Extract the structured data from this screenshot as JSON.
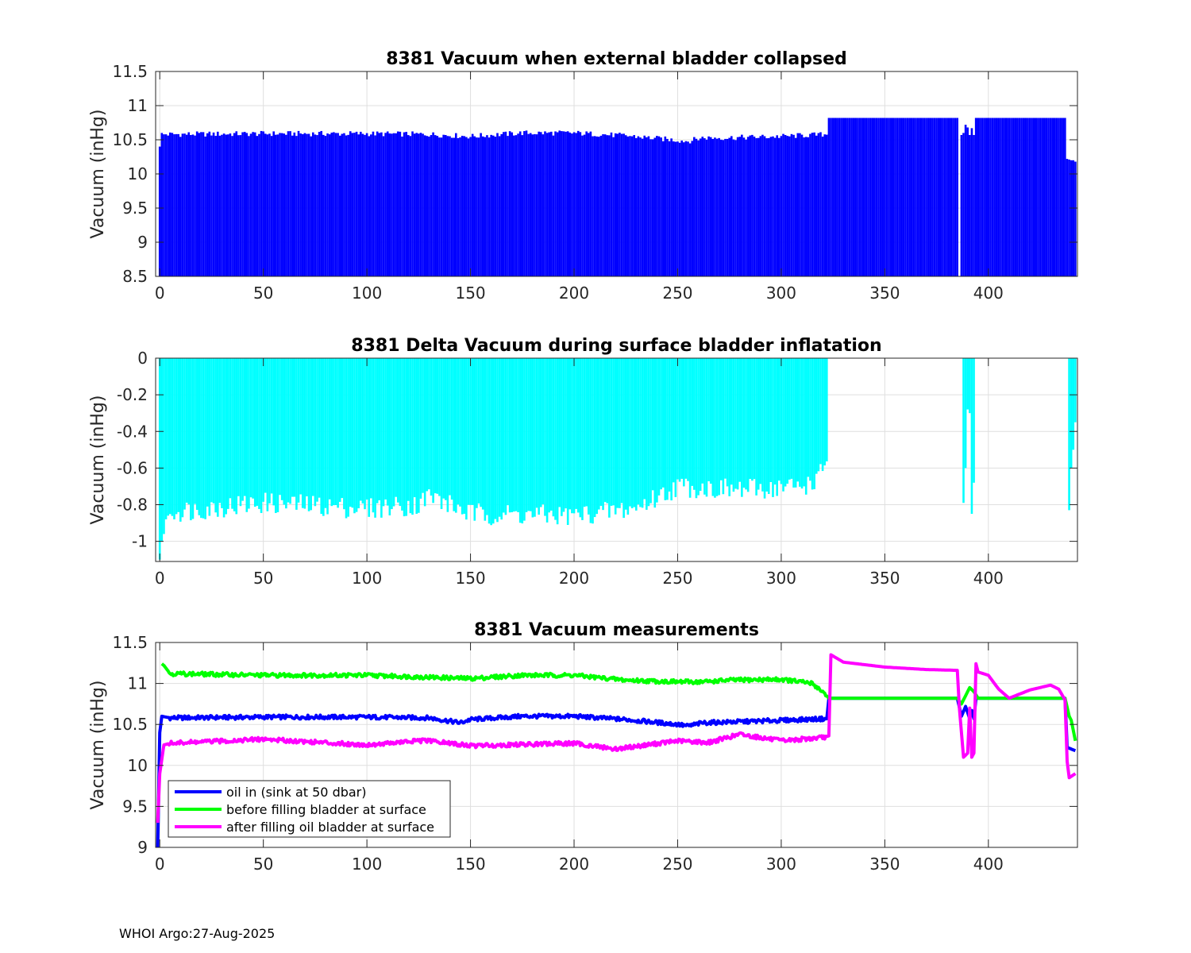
{
  "footer": "WHOI Argo:27-Aug-2025",
  "chart_data": [
    {
      "type": "bar",
      "title": "8381 Vacuum when external bladder collapsed",
      "ylabel": "Vacuum (inHg)",
      "xlim": [
        -2,
        443
      ],
      "ylim": [
        8.5,
        11.5
      ],
      "xticks": [
        0,
        50,
        100,
        150,
        200,
        250,
        300,
        350,
        400
      ],
      "yticks": [
        8.5,
        9,
        9.5,
        10,
        10.5,
        11,
        11.5
      ],
      "ytick_labels": [
        "8.5",
        "9",
        "9.5",
        "10",
        "10.5",
        "11",
        "11.5"
      ],
      "color": "#0000ff",
      "baseline": 8.5,
      "grid": true,
      "segments": [
        {
          "x": [
            0,
            1,
            2,
            3
          ],
          "y": [
            10.4,
            10.6,
            10.58,
            10.58
          ]
        },
        {
          "x": [
            4,
            50,
            100,
            130,
            150,
            175,
            200,
            225,
            255,
            262,
            275,
            300,
            322
          ],
          "y": [
            10.58,
            10.59,
            10.59,
            10.58,
            10.55,
            10.6,
            10.6,
            10.56,
            10.48,
            10.53,
            10.53,
            10.55,
            10.58
          ]
        },
        {
          "x": [
            323,
            385
          ],
          "y": [
            10.82,
            10.82
          ]
        },
        {
          "x": [
            387,
            388,
            389,
            390,
            391,
            392,
            393
          ],
          "y": [
            10.57,
            10.6,
            10.72,
            10.68,
            10.57,
            10.67,
            10.57
          ]
        },
        {
          "x": [
            394,
            437
          ],
          "y": [
            10.82,
            10.82
          ]
        },
        {
          "x": [
            438,
            439,
            440,
            441,
            442
          ],
          "y": [
            10.22,
            10.21,
            10.2,
            10.2,
            10.18
          ]
        }
      ]
    },
    {
      "type": "bar",
      "title": "8381 Delta Vacuum during surface bladder inflatation",
      "ylabel": "Vacuum (inHg)",
      "xlim": [
        -2,
        443
      ],
      "ylim": [
        -1.11,
        0
      ],
      "xticks": [
        0,
        50,
        100,
        150,
        200,
        250,
        300,
        350,
        400
      ],
      "yticks": [
        -1,
        -0.8,
        -0.6,
        -0.4,
        -0.2,
        0
      ],
      "ytick_labels": [
        "-1",
        "-0.8",
        "-0.6",
        "-0.4",
        "-0.2",
        "0"
      ],
      "color": "#00ffff",
      "baseline": 0,
      "grid": true,
      "segments": [
        {
          "x": [
            0,
            1,
            2,
            3,
            4
          ],
          "y": [
            -1.1,
            -1.0,
            -0.96,
            -0.88,
            -0.86
          ]
        },
        {
          "x": [
            5,
            50,
            100,
            125,
            130,
            150,
            200,
            230,
            250,
            280,
            310,
            318,
            322
          ],
          "y": [
            -0.84,
            -0.79,
            -0.82,
            -0.8,
            -0.75,
            -0.85,
            -0.86,
            -0.82,
            -0.7,
            -0.72,
            -0.7,
            -0.66,
            -0.55
          ]
        },
        {
          "x": [
            388,
            389,
            390,
            391,
            392,
            393
          ],
          "y": [
            -0.79,
            -0.6,
            -0.28,
            -0.3,
            -0.85,
            -0.68
          ]
        },
        {
          "x": [
            439,
            440,
            441,
            442
          ],
          "y": [
            -0.83,
            -0.6,
            -0.5,
            -0.35
          ]
        }
      ]
    },
    {
      "type": "line",
      "title": "8381 Vacuum measurements",
      "ylabel": "Vacuum (inHg)",
      "xlim": [
        -2,
        443
      ],
      "ylim": [
        9,
        11.5
      ],
      "xticks": [
        0,
        50,
        100,
        150,
        200,
        250,
        300,
        350,
        400
      ],
      "yticks": [
        9,
        9.5,
        10,
        10.5,
        11,
        11.5
      ],
      "ytick_labels": [
        "9",
        "9.5",
        "10",
        "10.5",
        "11",
        "11.5"
      ],
      "grid": true,
      "legend": "bottom-left",
      "series": [
        {
          "name": "oil in (sink at 50 dbar)",
          "color": "#0000ff",
          "x": [
            -1,
            0,
            1,
            5,
            50,
            100,
            130,
            145,
            150,
            175,
            200,
            225,
            250,
            255,
            262,
            275,
            300,
            322,
            323,
            385,
            387,
            389,
            391,
            392,
            393,
            394,
            437,
            438,
            440,
            442
          ],
          "y": [
            9.0,
            10.4,
            10.6,
            10.58,
            10.59,
            10.59,
            10.58,
            10.52,
            10.56,
            10.6,
            10.6,
            10.56,
            10.5,
            10.48,
            10.52,
            10.53,
            10.55,
            10.57,
            10.82,
            10.82,
            10.6,
            10.72,
            10.57,
            10.67,
            10.57,
            10.82,
            10.82,
            10.22,
            10.2,
            10.18
          ]
        },
        {
          "name": "before filling bladder at surface",
          "color": "#00ff00",
          "x": [
            1,
            2,
            5,
            50,
            100,
            150,
            175,
            200,
            225,
            250,
            262,
            275,
            300,
            315,
            320,
            323,
            385,
            387,
            389,
            391,
            393,
            395,
            405,
            415,
            425,
            430,
            437,
            439,
            440,
            442
          ],
          "y": [
            11.24,
            11.22,
            11.12,
            11.1,
            11.1,
            11.06,
            11.1,
            11.1,
            11.04,
            11.02,
            11.02,
            11.04,
            11.05,
            11.0,
            10.9,
            10.82,
            10.82,
            10.75,
            10.85,
            10.95,
            10.9,
            10.82,
            10.82,
            10.82,
            10.82,
            10.82,
            10.82,
            10.6,
            10.55,
            10.3
          ]
        },
        {
          "name": "after filling oil bladder at surface",
          "color": "#ff00ff",
          "x": [
            -1,
            0,
            2,
            5,
            50,
            100,
            125,
            130,
            150,
            200,
            220,
            250,
            265,
            280,
            300,
            320,
            323,
            324,
            330,
            350,
            370,
            385,
            386,
            388,
            390,
            391,
            392,
            393,
            394,
            395,
            400,
            405,
            410,
            420,
            430,
            434,
            437,
            438,
            439,
            442
          ],
          "y": [
            9.3,
            9.9,
            10.25,
            10.27,
            10.32,
            10.25,
            10.3,
            10.3,
            10.24,
            10.27,
            10.2,
            10.3,
            10.28,
            10.38,
            10.3,
            10.34,
            10.36,
            11.35,
            11.26,
            11.2,
            11.17,
            11.16,
            10.7,
            10.1,
            10.15,
            10.7,
            10.1,
            10.15,
            11.24,
            11.14,
            11.1,
            10.93,
            10.82,
            10.92,
            10.98,
            10.93,
            10.8,
            10.05,
            9.85,
            9.9
          ]
        }
      ]
    }
  ]
}
